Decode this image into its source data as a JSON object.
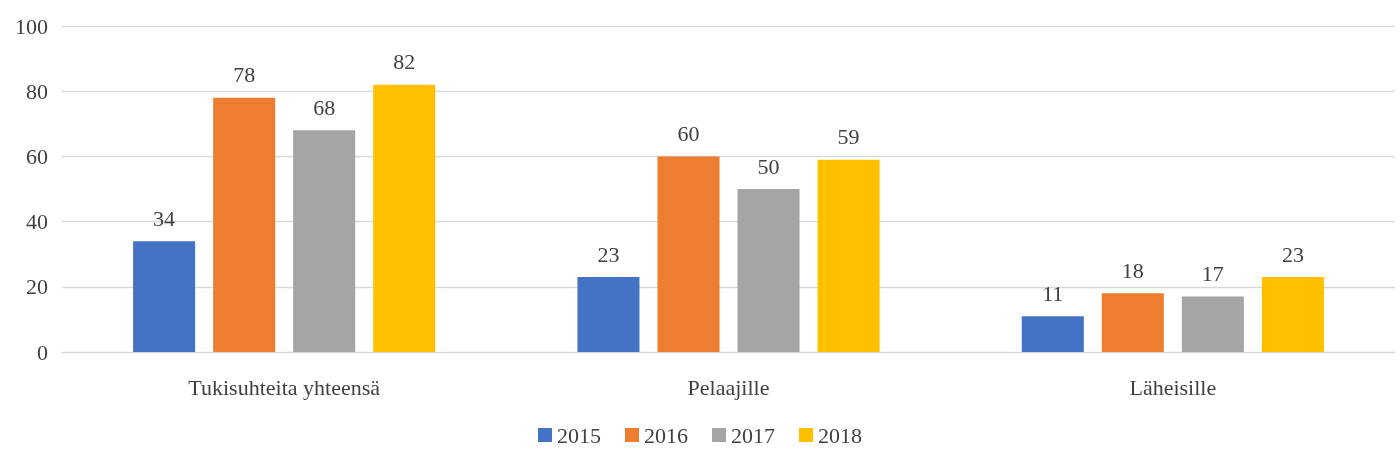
{
  "chart_data": {
    "type": "bar",
    "categories": [
      "Tukisuhteita yhteensä",
      "Pelaajille",
      "Läheisille"
    ],
    "series": [
      {
        "name": "2015",
        "color": "#4472c4",
        "values": [
          34,
          23,
          11
        ]
      },
      {
        "name": "2016",
        "color": "#ed7d31",
        "values": [
          78,
          60,
          18
        ]
      },
      {
        "name": "2017",
        "color": "#a5a5a5",
        "values": [
          68,
          50,
          17
        ]
      },
      {
        "name": "2018",
        "color": "#ffc000",
        "values": [
          82,
          59,
          23
        ]
      }
    ],
    "ylim": [
      0,
      100
    ],
    "yticks": [
      0,
      20,
      40,
      60,
      80,
      100
    ],
    "grid": "y",
    "legend": "bottom",
    "data_labels": true
  }
}
